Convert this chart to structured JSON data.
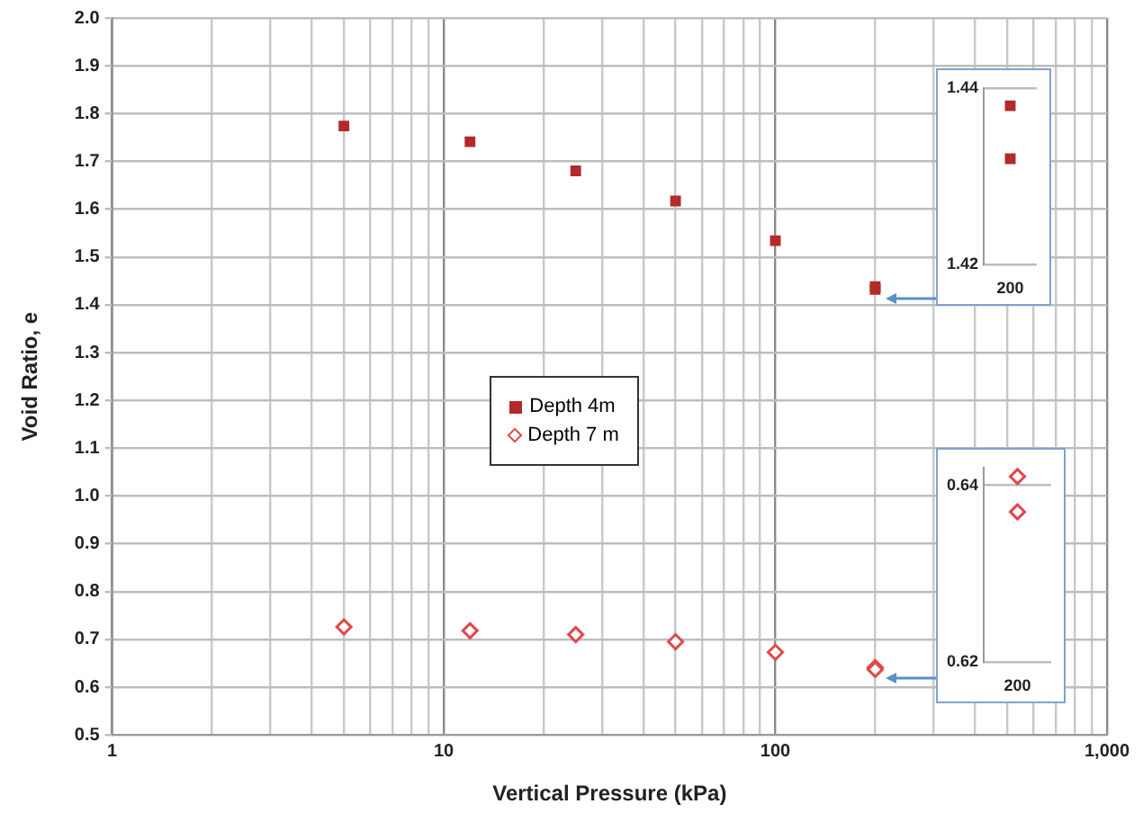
{
  "chart_data": [
    {
      "type": "scatter",
      "xlabel": "Vertical Pressure (kPa)",
      "ylabel": "Void Ratio, e",
      "log": "x",
      "grid": true,
      "legend": "center",
      "x": [
        5,
        12,
        25,
        50,
        100,
        200,
        200
      ],
      "series": [
        {
          "name": "Depth 4m",
          "color": "#b22a2a",
          "marker": "square",
          "values": [
            1.774,
            1.741,
            1.68,
            1.617,
            1.534,
            1.438,
            1.432
          ]
        },
        {
          "name": "Depth 7 m",
          "color": "#e04848",
          "marker": "diamond",
          "values": [
            0.726,
            0.718,
            0.71,
            0.695,
            0.673,
            0.641,
            0.637
          ]
        }
      ],
      "xlim": [
        1,
        1000
      ],
      "xticks": [
        1,
        {
          "value": 2,
          "label": null
        },
        {
          "value": 3,
          "label": null
        },
        {
          "value": 4,
          "label": null
        },
        {
          "value": 5,
          "label": null
        },
        {
          "value": 6,
          "label": null
        },
        {
          "value": 7,
          "label": null
        },
        {
          "value": 8,
          "label": null
        },
        {
          "value": 9,
          "label": null
        },
        10,
        {
          "value": 20,
          "label": null
        },
        {
          "value": 30,
          "label": null
        },
        {
          "value": 40,
          "label": null
        },
        {
          "value": 50,
          "label": null
        },
        {
          "value": 60,
          "label": null
        },
        {
          "value": 70,
          "label": null
        },
        {
          "value": 80,
          "label": null
        },
        {
          "value": 90,
          "label": null
        },
        100,
        {
          "value": 200,
          "label": null
        },
        {
          "value": 300,
          "label": null
        },
        {
          "value": 400,
          "label": null
        },
        {
          "value": 500,
          "label": null
        },
        {
          "value": 600,
          "label": null
        },
        {
          "value": 700,
          "label": null
        },
        {
          "value": 800,
          "label": null
        },
        {
          "value": 900,
          "label": null
        },
        {
          "value": 1000,
          "label": "1,000"
        }
      ],
      "ylim": [
        0.5,
        2.0
      ],
      "yticks": [
        0.5,
        0.6,
        0.7,
        0.8,
        0.9,
        {
          "value": 1.0,
          "label": "1.0"
        },
        1.1,
        1.2,
        1.3,
        1.4,
        1.5,
        1.6,
        1.7,
        1.8,
        1.9,
        {
          "value": 2.0,
          "label": "2.0"
        }
      ]
    },
    {
      "type": "scatter",
      "grid": "y",
      "categories": [
        "200"
      ],
      "series": [
        {
          "color": "#b22a2a",
          "marker": "square",
          "values": [
            1.438
          ]
        },
        {
          "color": "#b22a2a",
          "marker": "square",
          "values": [
            1.432
          ]
        }
      ],
      "ylim": [
        1.42,
        1.44
      ],
      "yticks": [
        1.42,
        1.44
      ]
    },
    {
      "type": "scatter",
      "grid": "y",
      "categories": [
        "200"
      ],
      "series": [
        {
          "color": "#e04848",
          "marker": "diamond",
          "values": [
            0.641
          ]
        },
        {
          "color": "#e04848",
          "marker": "diamond",
          "values": [
            0.637
          ]
        }
      ],
      "ylim": [
        0.62,
        0.642
      ],
      "yticks": [
        0.62,
        0.64
      ]
    }
  ]
}
